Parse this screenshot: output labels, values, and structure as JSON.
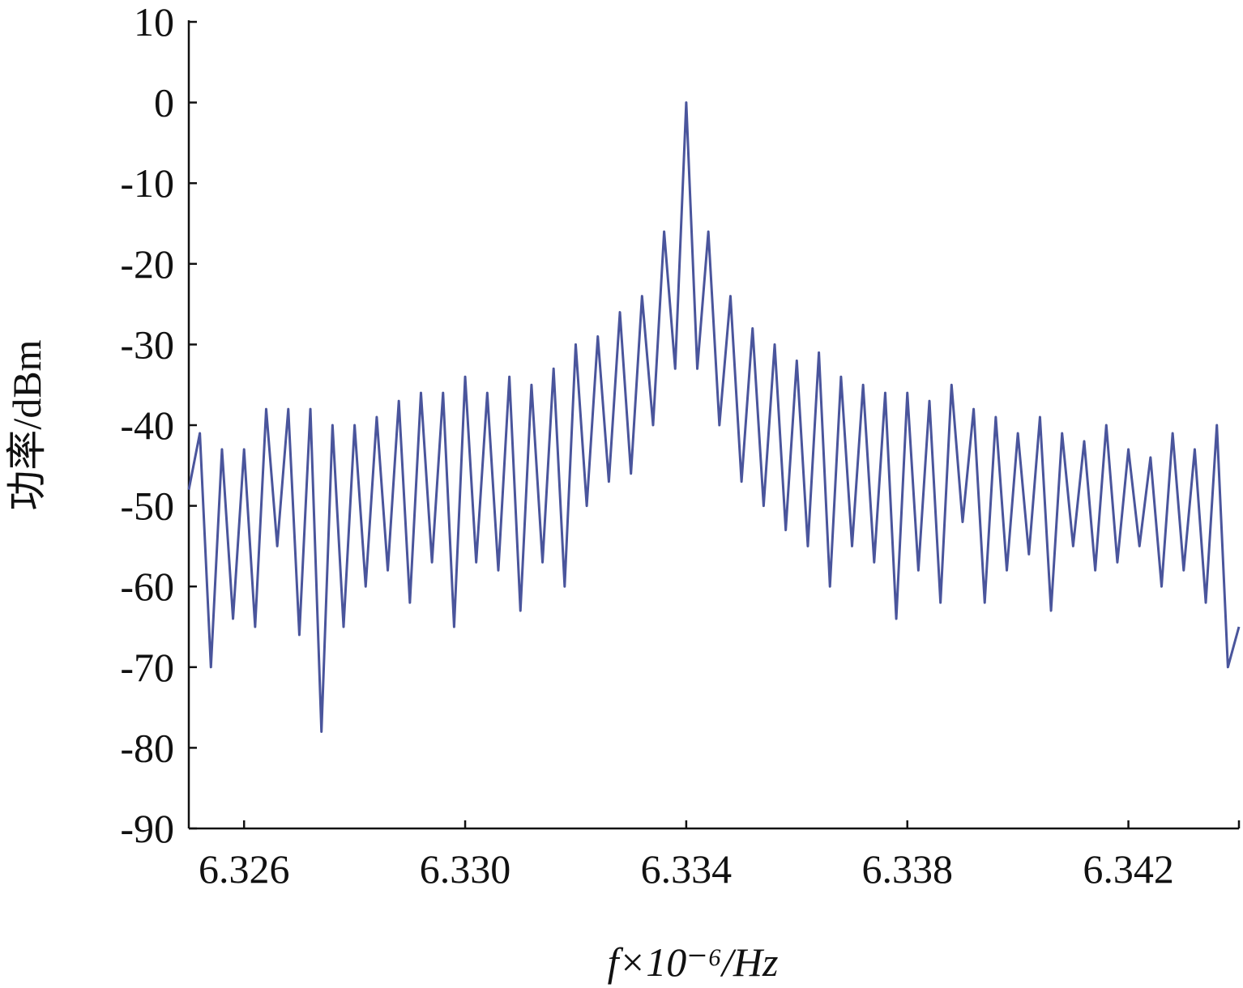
{
  "chart_data": {
    "type": "line",
    "xlabel": "f×10⁻⁶/Hz",
    "ylabel": "功率/dBm",
    "x": [
      6.325,
      6.3252,
      6.3254,
      6.3256,
      6.3258,
      6.326,
      6.3262,
      6.3264,
      6.3266,
      6.3268,
      6.327,
      6.3272,
      6.3274,
      6.3276,
      6.3278,
      6.328,
      6.3282,
      6.3284,
      6.3286,
      6.3288,
      6.329,
      6.3292,
      6.3294,
      6.3296,
      6.3298,
      6.33,
      6.3302,
      6.3304,
      6.3306,
      6.3308,
      6.331,
      6.3312,
      6.3314,
      6.3316,
      6.3318,
      6.332,
      6.3322,
      6.3324,
      6.3326,
      6.3328,
      6.333,
      6.3332,
      6.3334,
      6.3336,
      6.3338,
      6.334,
      6.3342,
      6.3344,
      6.3346,
      6.3348,
      6.335,
      6.3352,
      6.3354,
      6.3356,
      6.3358,
      6.336,
      6.3362,
      6.3364,
      6.3366,
      6.3368,
      6.337,
      6.3372,
      6.3374,
      6.3376,
      6.3378,
      6.338,
      6.3382,
      6.3384,
      6.3386,
      6.3388,
      6.339,
      6.3392,
      6.3394,
      6.3396,
      6.3398,
      6.34,
      6.3402,
      6.3404,
      6.3406,
      6.3408,
      6.341,
      6.3412,
      6.3414,
      6.3416,
      6.3418,
      6.342,
      6.3422,
      6.3424,
      6.3426,
      6.3428,
      6.343,
      6.3432,
      6.3434,
      6.3436,
      6.3438,
      6.344
    ],
    "series": [
      {
        "name": "power",
        "color": "#4a559c",
        "values": [
          -48,
          -41,
          -70,
          -43,
          -64,
          -43,
          -65,
          -38,
          -55,
          -38,
          -66,
          -38,
          -78,
          -40,
          -65,
          -40,
          -60,
          -39,
          -58,
          -37,
          -62,
          -36,
          -57,
          -36,
          -65,
          -34,
          -57,
          -36,
          -58,
          -34,
          -63,
          -35,
          -57,
          -33,
          -60,
          -30,
          -50,
          -29,
          -47,
          -26,
          -46,
          -24,
          -40,
          -16,
          -33,
          0,
          -33,
          -16,
          -40,
          -24,
          -47,
          -28,
          -50,
          -30,
          -53,
          -32,
          -55,
          -31,
          -60,
          -34,
          -55,
          -35,
          -57,
          -36,
          -64,
          -36,
          -58,
          -37,
          -62,
          -35,
          -52,
          -38,
          -62,
          -39,
          -58,
          -41,
          -56,
          -39,
          -63,
          -41,
          -55,
          -42,
          -58,
          -40,
          -57,
          -43,
          -55,
          -44,
          -60,
          -41,
          -58,
          -43,
          -62,
          -40,
          -70,
          -65
        ]
      }
    ],
    "xlim": [
      6.325,
      6.344
    ],
    "ylim": [
      -90,
      10
    ],
    "xticks": [
      6.326,
      {
        "value": 6.33,
        "label": "6.330"
      },
      6.334,
      6.338,
      6.342
    ],
    "yticks": [
      10,
      0,
      -10,
      -20,
      -30,
      -40,
      -50,
      -60,
      -70,
      -80,
      -90
    ],
    "grid": false
  }
}
